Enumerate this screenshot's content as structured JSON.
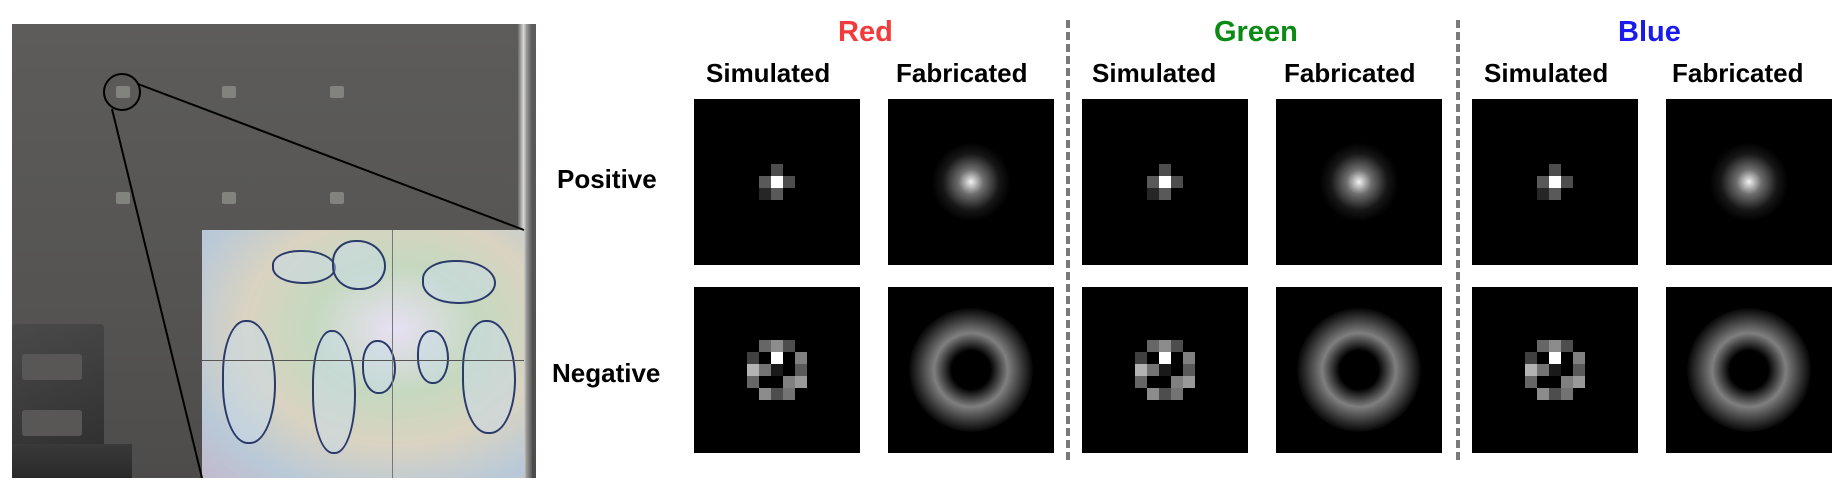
{
  "figure": {
    "colors": [
      {
        "label": "Red",
        "color": "#f23b3b"
      },
      {
        "label": "Green",
        "color": "#0b8a14"
      },
      {
        "label": "Blue",
        "color": "#1a1aee"
      }
    ],
    "column_labels": [
      "Simulated",
      "Fabricated",
      "Simulated",
      "Fabricated",
      "Simulated",
      "Fabricated"
    ],
    "row_labels": [
      "Positive",
      "Negative"
    ]
  }
}
